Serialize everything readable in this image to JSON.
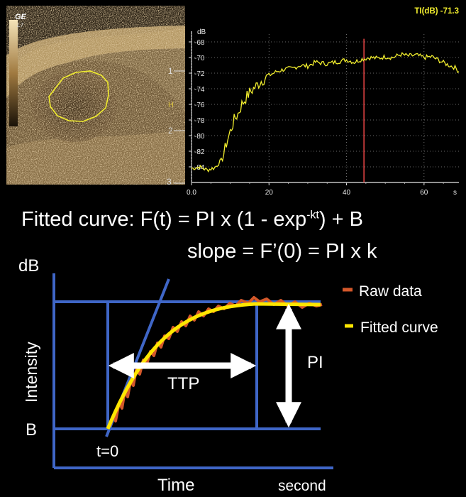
{
  "ultrasound": {
    "brand": "GE",
    "probe": "L7",
    "depth_ticks": [
      "1",
      "2",
      "3"
    ],
    "focus_mark": "H"
  },
  "tic_plot": {
    "readout": "TI(dB) -71.3",
    "y_unit": "dB",
    "y_ticks": [
      "-68",
      "-70",
      "-72",
      "-74",
      "-76",
      "-78",
      "-80",
      "-82",
      "-84"
    ],
    "x_ticks": [
      "0.0",
      "20",
      "40",
      "60"
    ],
    "x_unit": "s",
    "trace_color": "#f2ee2e",
    "marker_color": "#ff4a4a"
  },
  "chart_data": {
    "type": "line",
    "x_unit": "s",
    "y_unit": "dB",
    "xlim": [
      0,
      69
    ],
    "ylim": [
      -86,
      -67
    ],
    "marker_x": 44.5,
    "series": [
      {
        "x": [
          0,
          2,
          4,
          6,
          8,
          9,
          10,
          11,
          12,
          13,
          14,
          15,
          16,
          18,
          20,
          22,
          24,
          26,
          28,
          30,
          32,
          35,
          38,
          40,
          42,
          44,
          46,
          48,
          50,
          52,
          54,
          56,
          58,
          60,
          62,
          64,
          66,
          68,
          69
        ],
        "y": [
          -84.2,
          -84.0,
          -84.4,
          -84.1,
          -83.0,
          -81.0,
          -79.5,
          -78.0,
          -77.2,
          -76.0,
          -75.2,
          -74.5,
          -74.0,
          -73.0,
          -72.3,
          -71.8,
          -71.5,
          -71.4,
          -71.0,
          -71.1,
          -70.6,
          -70.8,
          -70.5,
          -70.3,
          -70.6,
          -70.2,
          -70.0,
          -70.1,
          -69.9,
          -70.0,
          -69.6,
          -69.8,
          -69.7,
          -70.0,
          -69.9,
          -70.4,
          -70.9,
          -71.3,
          -71.8
        ]
      }
    ]
  },
  "formula": {
    "line1_prefix": "Fitted curve: F(t) = PI x (1 - exp",
    "line1_sup": "-kt",
    "line1_suffix": ") + B",
    "line2": "slope = F’(0) = PI x k"
  },
  "diagram": {
    "y_unit": "dB",
    "y_label": "Intensity",
    "x_label": "Time",
    "x_unit": "second",
    "baseline_label": "B",
    "t0_label": "t=0",
    "ttp_label": "TTP",
    "pi_label": "PI",
    "legend": [
      {
        "label": "Raw data",
        "color": "#d4582a"
      },
      {
        "label": "Fitted curve",
        "color": "#ffe600"
      }
    ],
    "axis_color": "#3f66c7"
  }
}
